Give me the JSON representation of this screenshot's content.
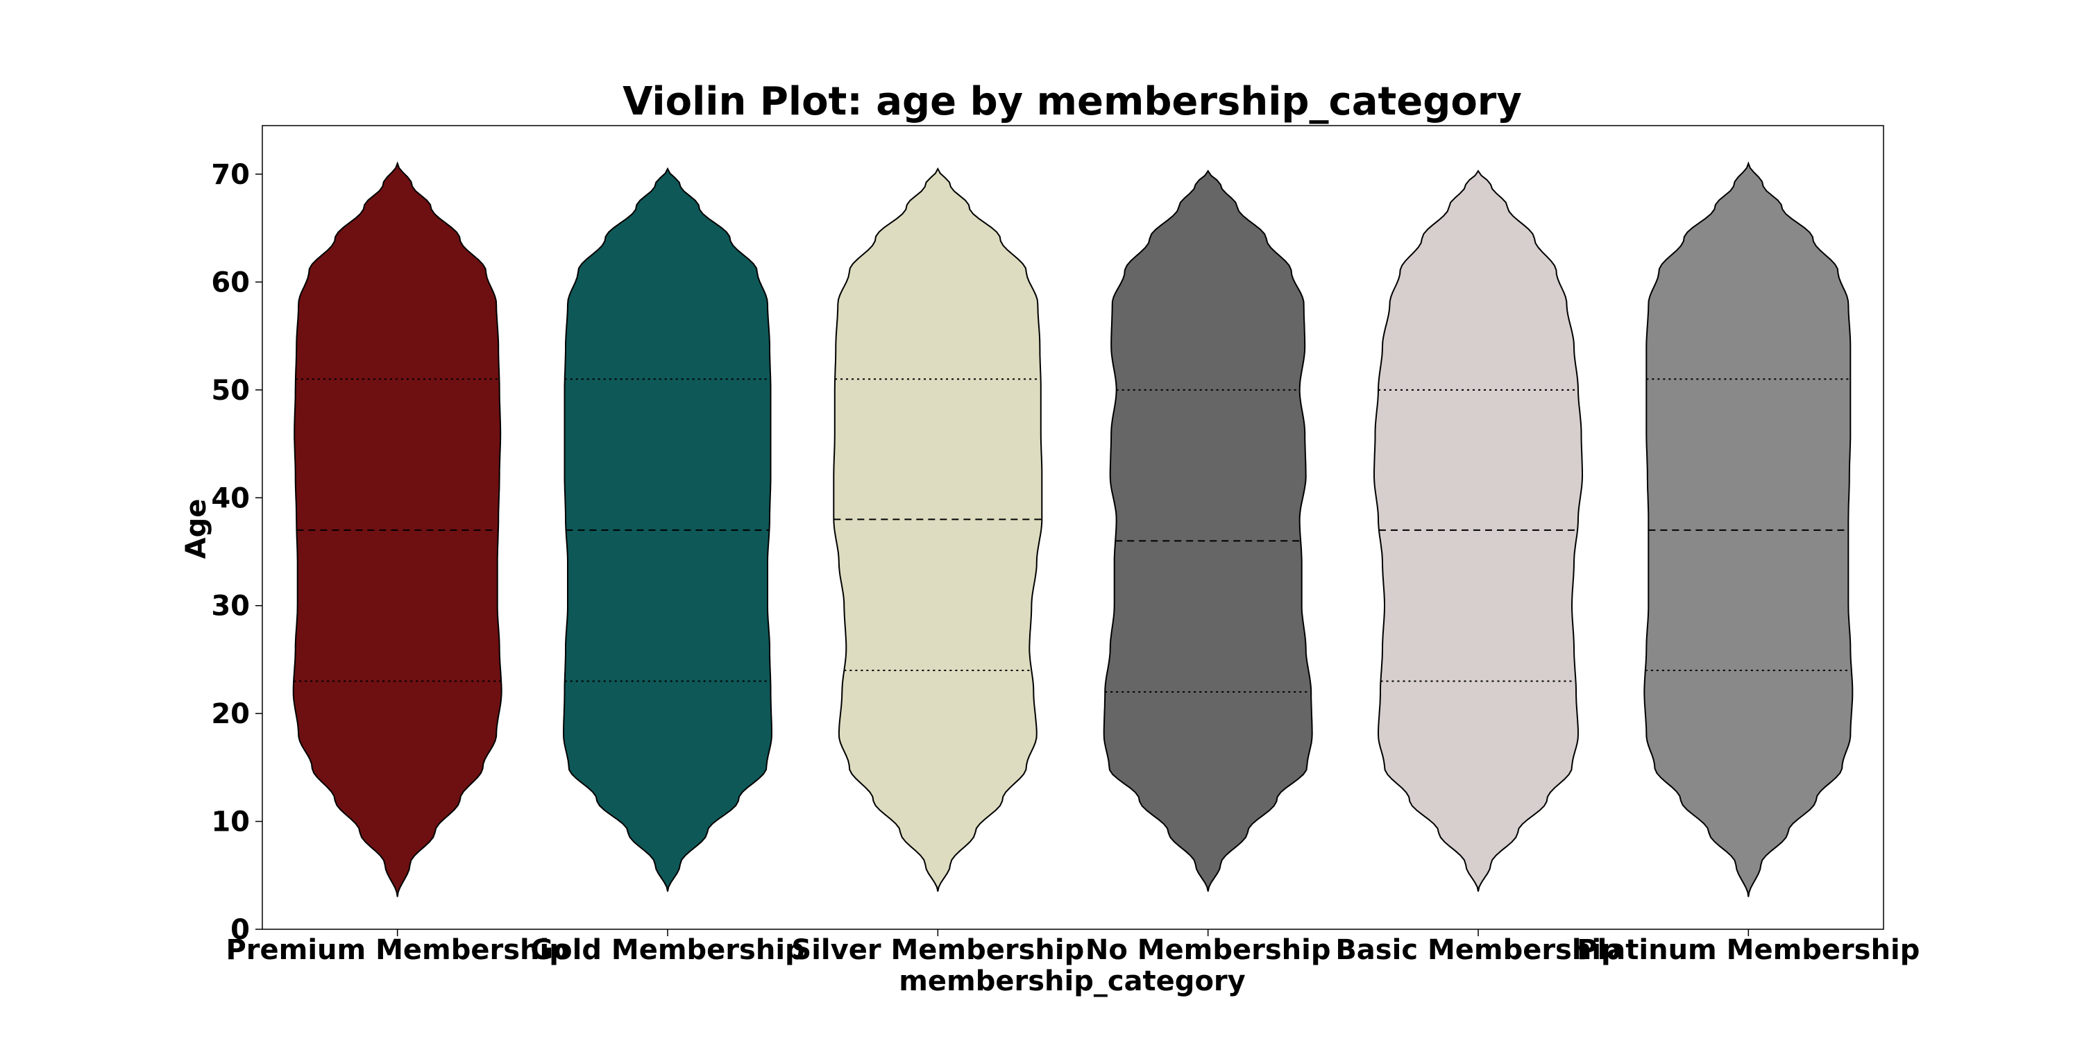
{
  "chart_data": {
    "type": "violin",
    "title": "Violin Plot: age by membership_category",
    "xlabel": "membership_category",
    "ylabel": "Age",
    "ylim": [
      0,
      74.5
    ],
    "yticks": [
      0,
      10,
      20,
      30,
      40,
      50,
      60,
      70
    ],
    "grid": false,
    "categories": [
      "Premium Membership",
      "Gold Membership",
      "Silver Membership",
      "No Membership",
      "Basic Membership",
      "Platinum Membership"
    ],
    "colors": [
      "#6e1012",
      "#0f5858",
      "#dddcc0",
      "#666666",
      "#d6cfcd",
      "#898989"
    ],
    "violins": [
      {
        "min": 3,
        "max": 71,
        "q1": 23,
        "median": 37,
        "q3": 51,
        "profile": [
          [
            3,
            0
          ],
          [
            6,
            0.12
          ],
          [
            9,
            0.36
          ],
          [
            12,
            0.6
          ],
          [
            15,
            0.82
          ],
          [
            18,
            0.95
          ],
          [
            22,
            1.0
          ],
          [
            26,
            0.98
          ],
          [
            30,
            0.96
          ],
          [
            34,
            0.96
          ],
          [
            38,
            0.97
          ],
          [
            42,
            0.98
          ],
          [
            46,
            0.99
          ],
          [
            50,
            0.98
          ],
          [
            54,
            0.97
          ],
          [
            58,
            0.95
          ],
          [
            61,
            0.85
          ],
          [
            64,
            0.6
          ],
          [
            67,
            0.32
          ],
          [
            69,
            0.14
          ],
          [
            71,
            0
          ]
        ]
      },
      {
        "min": 3.5,
        "max": 70.5,
        "q1": 23,
        "median": 37,
        "q3": 51,
        "profile": [
          [
            3.5,
            0
          ],
          [
            6,
            0.12
          ],
          [
            9,
            0.38
          ],
          [
            12,
            0.68
          ],
          [
            15,
            0.95
          ],
          [
            18,
            1.0
          ],
          [
            22,
            0.99
          ],
          [
            26,
            0.98
          ],
          [
            30,
            0.96
          ],
          [
            34,
            0.96
          ],
          [
            38,
            0.98
          ],
          [
            42,
            0.99
          ],
          [
            46,
            0.99
          ],
          [
            50,
            0.99
          ],
          [
            54,
            0.98
          ],
          [
            58,
            0.96
          ],
          [
            61,
            0.86
          ],
          [
            64,
            0.6
          ],
          [
            67,
            0.3
          ],
          [
            69,
            0.12
          ],
          [
            70.5,
            0
          ]
        ]
      },
      {
        "min": 3.5,
        "max": 70.5,
        "q1": 24,
        "median": 38,
        "q3": 51,
        "profile": [
          [
            3.5,
            0
          ],
          [
            6,
            0.12
          ],
          [
            9,
            0.36
          ],
          [
            12,
            0.62
          ],
          [
            15,
            0.85
          ],
          [
            18,
            0.95
          ],
          [
            22,
            0.92
          ],
          [
            26,
            0.88
          ],
          [
            30,
            0.9
          ],
          [
            34,
            0.95
          ],
          [
            38,
            1.0
          ],
          [
            42,
            1.0
          ],
          [
            46,
            0.99
          ],
          [
            50,
            0.99
          ],
          [
            54,
            0.98
          ],
          [
            58,
            0.96
          ],
          [
            61,
            0.85
          ],
          [
            64,
            0.6
          ],
          [
            67,
            0.3
          ],
          [
            69,
            0.12
          ],
          [
            70.5,
            0
          ]
        ]
      },
      {
        "min": 3.5,
        "max": 70.3,
        "q1": 22,
        "median": 36,
        "q3": 50,
        "profile": [
          [
            3.5,
            0
          ],
          [
            6,
            0.12
          ],
          [
            9,
            0.38
          ],
          [
            12,
            0.66
          ],
          [
            15,
            0.95
          ],
          [
            18,
            1.0
          ],
          [
            22,
            0.99
          ],
          [
            26,
            0.94
          ],
          [
            30,
            0.9
          ],
          [
            34,
            0.9
          ],
          [
            38,
            0.88
          ],
          [
            42,
            0.94
          ],
          [
            46,
            0.93
          ],
          [
            50,
            0.88
          ],
          [
            54,
            0.93
          ],
          [
            58,
            0.92
          ],
          [
            61,
            0.8
          ],
          [
            64,
            0.56
          ],
          [
            67,
            0.28
          ],
          [
            69,
            0.12
          ],
          [
            70.3,
            0
          ]
        ]
      },
      {
        "min": 3.5,
        "max": 70.3,
        "q1": 23,
        "median": 37,
        "q3": 50,
        "profile": [
          [
            3.5,
            0
          ],
          [
            6,
            0.12
          ],
          [
            9,
            0.38
          ],
          [
            12,
            0.66
          ],
          [
            15,
            0.9
          ],
          [
            18,
            0.96
          ],
          [
            22,
            0.94
          ],
          [
            26,
            0.92
          ],
          [
            30,
            0.9
          ],
          [
            34,
            0.92
          ],
          [
            38,
            0.96
          ],
          [
            42,
            1.0
          ],
          [
            46,
            0.99
          ],
          [
            50,
            0.96
          ],
          [
            54,
            0.92
          ],
          [
            58,
            0.85
          ],
          [
            61,
            0.75
          ],
          [
            64,
            0.54
          ],
          [
            67,
            0.28
          ],
          [
            69,
            0.12
          ],
          [
            70.3,
            0
          ]
        ]
      },
      {
        "min": 3,
        "max": 71,
        "q1": 24,
        "median": 37,
        "q3": 51,
        "profile": [
          [
            3,
            0
          ],
          [
            6,
            0.12
          ],
          [
            9,
            0.38
          ],
          [
            12,
            0.65
          ],
          [
            15,
            0.9
          ],
          [
            18,
            0.98
          ],
          [
            22,
            1.0
          ],
          [
            26,
            0.98
          ],
          [
            30,
            0.96
          ],
          [
            34,
            0.96
          ],
          [
            38,
            0.96
          ],
          [
            42,
            0.97
          ],
          [
            46,
            0.98
          ],
          [
            50,
            0.98
          ],
          [
            54,
            0.98
          ],
          [
            58,
            0.96
          ],
          [
            61,
            0.86
          ],
          [
            64,
            0.62
          ],
          [
            67,
            0.32
          ],
          [
            69,
            0.14
          ],
          [
            71,
            0
          ]
        ]
      }
    ]
  }
}
